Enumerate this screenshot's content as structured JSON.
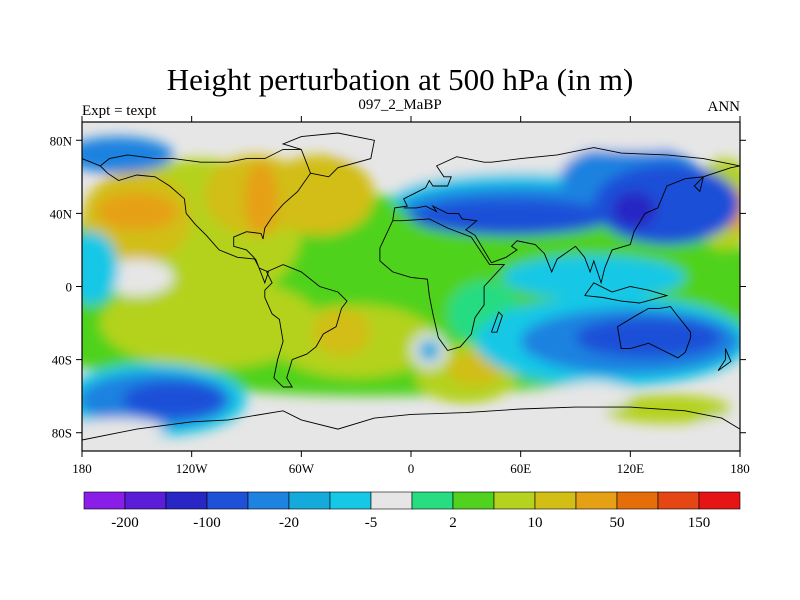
{
  "title": "Height perturbation at 500 hPa (in m)",
  "subtitle_left": "Expt = texpt",
  "subtitle_center": "097_2_MaBP",
  "subtitle_right": "ANN",
  "axes": {
    "x_ticks": [
      {
        "value": -180,
        "label": "180"
      },
      {
        "value": -120,
        "label": "120W"
      },
      {
        "value": -60,
        "label": "60W"
      },
      {
        "value": 0,
        "label": "0"
      },
      {
        "value": 60,
        "label": "60E"
      },
      {
        "value": 120,
        "label": "120E"
      },
      {
        "value": 180,
        "label": "180"
      }
    ],
    "y_ticks": [
      {
        "value": 80,
        "label": "80N"
      },
      {
        "value": 40,
        "label": "40N"
      },
      {
        "value": 0,
        "label": "0"
      },
      {
        "value": -40,
        "label": "40S"
      },
      {
        "value": -80,
        "label": "80S"
      }
    ],
    "lon_range": [
      -180,
      180
    ],
    "lat_range": [
      -90,
      90
    ]
  },
  "colorbar": {
    "colors": [
      "#8a1ee8",
      "#5a1ed8",
      "#2826c4",
      "#1e50d8",
      "#1e82e0",
      "#14aadc",
      "#14c8e6",
      "#e6e6e6",
      "#28dc82",
      "#50d21e",
      "#b4d21e",
      "#d2be14",
      "#e6a014",
      "#e66e0a",
      "#e64614",
      "#e61414"
    ],
    "labels": [
      {
        "boundary": 1,
        "text": "-200"
      },
      {
        "boundary": 3,
        "text": "-100"
      },
      {
        "boundary": 5,
        "text": "-20"
      },
      {
        "boundary": 7,
        "text": "-5"
      },
      {
        "boundary": 9,
        "text": "2"
      },
      {
        "boundary": 11,
        "text": "10"
      },
      {
        "boundary": 13,
        "text": "50"
      },
      {
        "boundary": 15,
        "text": "150"
      }
    ]
  },
  "field_blobs": [
    {
      "lon": -20,
      "lat": -5,
      "rlon": 230,
      "rlat": 55,
      "color": "#50d21e"
    },
    {
      "lon": -115,
      "lat": 30,
      "rlon": 55,
      "rlat": 40,
      "color": "#b4d21e"
    },
    {
      "lon": -110,
      "lat": -20,
      "rlon": 60,
      "rlat": 25,
      "color": "#b4d21e"
    },
    {
      "lon": -50,
      "lat": 50,
      "rlon": 30,
      "rlat": 22,
      "color": "#d2be14"
    },
    {
      "lon": -85,
      "lat": 50,
      "rlon": 28,
      "rlat": 22,
      "color": "#d2be14"
    },
    {
      "lon": -150,
      "lat": 38,
      "rlon": 30,
      "rlat": 25,
      "color": "#d2be14"
    },
    {
      "lon": -150,
      "lat": 41,
      "rlon": 22,
      "rlat": 10,
      "color": "#e6a014"
    },
    {
      "lon": -82,
      "lat": 48,
      "rlon": 9,
      "rlat": 20,
      "color": "#e6a014"
    },
    {
      "lon": -30,
      "lat": -30,
      "rlon": 45,
      "rlat": 20,
      "color": "#b4d21e"
    },
    {
      "lon": -38,
      "lat": -25,
      "rlon": 16,
      "rlat": 13,
      "color": "#d2be14"
    },
    {
      "lon": 30,
      "lat": -48,
      "rlon": 28,
      "rlat": 16,
      "color": "#b4d21e"
    },
    {
      "lon": 35,
      "lat": -45,
      "rlon": 15,
      "rlat": 9,
      "color": "#d2be14"
    },
    {
      "lon": 140,
      "lat": -67,
      "rlon": 35,
      "rlat": 8,
      "color": "#b4d21e"
    },
    {
      "lon": 172,
      "lat": 45,
      "rlon": 18,
      "rlat": 25,
      "color": "#b4d21e"
    },
    {
      "lon": 178,
      "lat": 42,
      "rlon": 8,
      "rlat": 12,
      "color": "#e6a014"
    },
    {
      "lon": -150,
      "lat": 5,
      "rlon": 20,
      "rlat": 10,
      "color": "#e6e6e6"
    },
    {
      "lon": 40,
      "lat": -15,
      "rlon": 20,
      "rlat": 18,
      "color": "#28dc82"
    },
    {
      "lon": 40,
      "lat": 76,
      "rlon": 80,
      "rlat": 10,
      "color": "#e6e6e6"
    },
    {
      "lon": 60,
      "lat": 55,
      "rlon": 70,
      "rlat": 17,
      "color": "#e6e6e6"
    },
    {
      "lon": 60,
      "lat": 48,
      "rlon": 70,
      "rlat": 14,
      "color": "#14c8e6"
    },
    {
      "lon": 60,
      "lat": 43,
      "rlon": 65,
      "rlat": 12,
      "color": "#1e82e0"
    },
    {
      "lon": 55,
      "lat": 38,
      "rlon": 55,
      "rlat": 10,
      "color": "#1e50d8"
    },
    {
      "lon": 120,
      "lat": 60,
      "rlon": 38,
      "rlat": 18,
      "color": "#1e82e0"
    },
    {
      "lon": 140,
      "lat": 45,
      "rlon": 40,
      "rlat": 22,
      "color": "#1e50d8"
    },
    {
      "lon": 122,
      "lat": 42,
      "rlon": 12,
      "rlat": 10,
      "color": "#2826c4"
    },
    {
      "lon": -160,
      "lat": 72,
      "rlon": 30,
      "rlat": 10,
      "color": "#1e82e0"
    },
    {
      "lon": -175,
      "lat": 10,
      "rlon": 15,
      "rlat": 20,
      "color": "#14c8e6"
    },
    {
      "lon": 100,
      "lat": 5,
      "rlon": 50,
      "rlat": 12,
      "color": "#14c8e6"
    },
    {
      "lon": 110,
      "lat": -30,
      "rlon": 75,
      "rlat": 25,
      "color": "#14c8e6"
    },
    {
      "lon": 120,
      "lat": -30,
      "rlon": 60,
      "rlat": 18,
      "color": "#1e82e0"
    },
    {
      "lon": 130,
      "lat": -28,
      "rlon": 40,
      "rlat": 11,
      "color": "#1e50d8"
    },
    {
      "lon": -140,
      "lat": -62,
      "rlon": 50,
      "rlat": 20,
      "color": "#14c8e6"
    },
    {
      "lon": -140,
      "lat": -62,
      "rlon": 42,
      "rlat": 15,
      "color": "#1e82e0"
    },
    {
      "lon": -130,
      "lat": -62,
      "rlon": 28,
      "rlat": 10,
      "color": "#1e50d8"
    },
    {
      "lon": 10,
      "lat": -35,
      "rlon": 10,
      "rlat": 10,
      "color": "#e6e6e6"
    },
    {
      "lon": 10,
      "lat": -35,
      "rlon": 6,
      "rlat": 6,
      "color": "#14aadc"
    },
    {
      "lon": -160,
      "lat": -78,
      "rlon": 25,
      "rlat": 6,
      "color": "#e6e6e6"
    },
    {
      "lon": 10,
      "lat": -78,
      "rlon": 60,
      "rlat": 7,
      "color": "#e6e6e6"
    },
    {
      "lon": 170,
      "lat": -78,
      "rlon": 12,
      "rlat": 7,
      "color": "#e6e6e6"
    },
    {
      "lon": 120,
      "lat": 80,
      "rlon": 40,
      "rlat": 6,
      "color": "#e6e6e6"
    },
    {
      "lon": 100,
      "lat": -60,
      "rlon": 20,
      "rlat": 8,
      "color": "#e6e6e6"
    }
  ],
  "coastlines": [
    [
      [
        -170,
        66
      ],
      [
        -165,
        70
      ],
      [
        -155,
        72
      ],
      [
        -140,
        70
      ],
      [
        -130,
        70
      ],
      [
        -115,
        68
      ],
      [
        -100,
        68
      ],
      [
        -90,
        70
      ],
      [
        -80,
        70
      ],
      [
        -70,
        75
      ],
      [
        -60,
        75
      ],
      [
        -55,
        62
      ],
      [
        -62,
        52
      ],
      [
        -70,
        45
      ],
      [
        -76,
        38
      ],
      [
        -80,
        32
      ],
      [
        -81,
        26
      ],
      [
        -82,
        29
      ],
      [
        -90,
        30
      ],
      [
        -97,
        27
      ],
      [
        -97,
        22
      ],
      [
        -90,
        20
      ],
      [
        -86,
        16
      ],
      [
        -83,
        10
      ],
      [
        -78,
        8
      ],
      [
        -80,
        2
      ],
      [
        -85,
        15
      ],
      [
        -95,
        16
      ],
      [
        -105,
        20
      ],
      [
        -112,
        28
      ],
      [
        -118,
        34
      ],
      [
        -123,
        40
      ],
      [
        -124,
        48
      ],
      [
        -132,
        55
      ],
      [
        -140,
        60
      ],
      [
        -150,
        61
      ],
      [
        -160,
        58
      ],
      [
        -166,
        62
      ],
      [
        -170,
        66
      ]
    ],
    [
      [
        -79,
        8
      ],
      [
        -76,
        2
      ],
      [
        -80,
        -2
      ],
      [
        -80,
        -6
      ],
      [
        -76,
        -15
      ],
      [
        -72,
        -18
      ],
      [
        -70,
        -30
      ],
      [
        -73,
        -40
      ],
      [
        -75,
        -50
      ],
      [
        -70,
        -55
      ],
      [
        -65,
        -55
      ],
      [
        -68,
        -50
      ],
      [
        -65,
        -40
      ],
      [
        -57,
        -37
      ],
      [
        -52,
        -33
      ],
      [
        -48,
        -26
      ],
      [
        -41,
        -22
      ],
      [
        -38,
        -12
      ],
      [
        -35,
        -8
      ],
      [
        -40,
        -3
      ],
      [
        -50,
        0
      ],
      [
        -60,
        8
      ],
      [
        -70,
        12
      ],
      [
        -79,
        8
      ]
    ],
    [
      [
        -10,
        36
      ],
      [
        -17,
        21
      ],
      [
        -17,
        14
      ],
      [
        -10,
        8
      ],
      [
        0,
        5
      ],
      [
        9,
        4
      ],
      [
        10,
        -5
      ],
      [
        12,
        -15
      ],
      [
        15,
        -28
      ],
      [
        20,
        -35
      ],
      [
        27,
        -33
      ],
      [
        33,
        -26
      ],
      [
        35,
        -17
      ],
      [
        40,
        -10
      ],
      [
        40,
        0
      ],
      [
        51,
        12
      ],
      [
        43,
        12
      ],
      [
        33,
        27
      ],
      [
        20,
        32
      ],
      [
        10,
        37
      ],
      [
        -5,
        36
      ],
      [
        -10,
        36
      ]
    ],
    [
      [
        -10,
        36
      ],
      [
        -9,
        43
      ],
      [
        -2,
        44
      ],
      [
        -4,
        48
      ],
      [
        2,
        51
      ],
      [
        8,
        54
      ],
      [
        10,
        58
      ],
      [
        12,
        55
      ],
      [
        20,
        55
      ],
      [
        22,
        60
      ],
      [
        18,
        60
      ],
      [
        14,
        66
      ],
      [
        25,
        71
      ],
      [
        40,
        68
      ],
      [
        44,
        68
      ],
      [
        60,
        70
      ],
      [
        80,
        72
      ],
      [
        100,
        76
      ],
      [
        115,
        73
      ],
      [
        140,
        72
      ],
      [
        160,
        70
      ],
      [
        180,
        66
      ]
    ],
    [
      [
        180,
        66
      ],
      [
        175,
        65
      ],
      [
        160,
        60
      ],
      [
        155,
        55
      ],
      [
        158,
        52
      ],
      [
        160,
        60
      ],
      [
        150,
        59
      ],
      [
        140,
        55
      ],
      [
        135,
        43
      ],
      [
        128,
        40
      ],
      [
        122,
        30
      ],
      [
        120,
        23
      ],
      [
        110,
        20
      ],
      [
        106,
        10
      ],
      [
        104,
        2
      ],
      [
        100,
        14
      ],
      [
        98,
        8
      ],
      [
        95,
        16
      ],
      [
        90,
        22
      ],
      [
        80,
        15
      ],
      [
        77,
        8
      ],
      [
        73,
        18
      ],
      [
        68,
        23
      ],
      [
        58,
        25
      ],
      [
        55,
        22
      ],
      [
        58,
        20
      ],
      [
        52,
        16
      ],
      [
        44,
        13
      ],
      [
        35,
        28
      ],
      [
        30,
        31
      ],
      [
        36,
        36
      ],
      [
        28,
        37
      ],
      [
        26,
        40
      ],
      [
        20,
        40
      ],
      [
        12,
        44
      ],
      [
        14,
        41
      ],
      [
        8,
        44
      ],
      [
        3,
        43
      ],
      [
        -4,
        43
      ]
    ],
    [
      [
        -55,
        62
      ],
      [
        -45,
        60
      ],
      [
        -40,
        65
      ],
      [
        -22,
        70
      ],
      [
        -20,
        80
      ],
      [
        -40,
        84
      ],
      [
        -60,
        82
      ],
      [
        -70,
        78
      ],
      [
        -60,
        75
      ]
    ],
    [
      [
        -180,
        70
      ],
      [
        -175,
        68
      ],
      [
        -170,
        66
      ]
    ],
    [
      [
        113,
        -22
      ],
      [
        115,
        -34
      ],
      [
        120,
        -34
      ],
      [
        130,
        -31
      ],
      [
        138,
        -35
      ],
      [
        146,
        -39
      ],
      [
        150,
        -36
      ],
      [
        153,
        -28
      ],
      [
        153,
        -25
      ],
      [
        145,
        -15
      ],
      [
        142,
        -11
      ],
      [
        136,
        -12
      ],
      [
        130,
        -12
      ],
      [
        123,
        -16
      ],
      [
        113,
        -22
      ]
    ],
    [
      [
        172,
        -34
      ],
      [
        175,
        -41
      ],
      [
        168,
        -46
      ],
      [
        172,
        -40
      ],
      [
        172,
        -34
      ]
    ],
    [
      [
        44,
        -25
      ],
      [
        48,
        -14
      ],
      [
        50,
        -16
      ],
      [
        47,
        -25
      ],
      [
        44,
        -25
      ]
    ],
    [
      [
        -180,
        -84
      ],
      [
        -150,
        -78
      ],
      [
        -120,
        -74
      ],
      [
        -100,
        -73
      ],
      [
        -70,
        -68
      ],
      [
        -60,
        -73
      ],
      [
        -40,
        -78
      ],
      [
        -20,
        -72
      ],
      [
        0,
        -70
      ],
      [
        30,
        -69
      ],
      [
        60,
        -67
      ],
      [
        90,
        -66
      ],
      [
        120,
        -66
      ],
      [
        150,
        -68
      ],
      [
        170,
        -72
      ],
      [
        180,
        -78
      ]
    ],
    [
      [
        95,
        -5
      ],
      [
        105,
        -6
      ],
      [
        115,
        -8
      ],
      [
        125,
        -9
      ],
      [
        140,
        -5
      ],
      [
        130,
        -2
      ],
      [
        120,
        0
      ],
      [
        110,
        -3
      ],
      [
        100,
        2
      ],
      [
        95,
        -5
      ]
    ]
  ]
}
